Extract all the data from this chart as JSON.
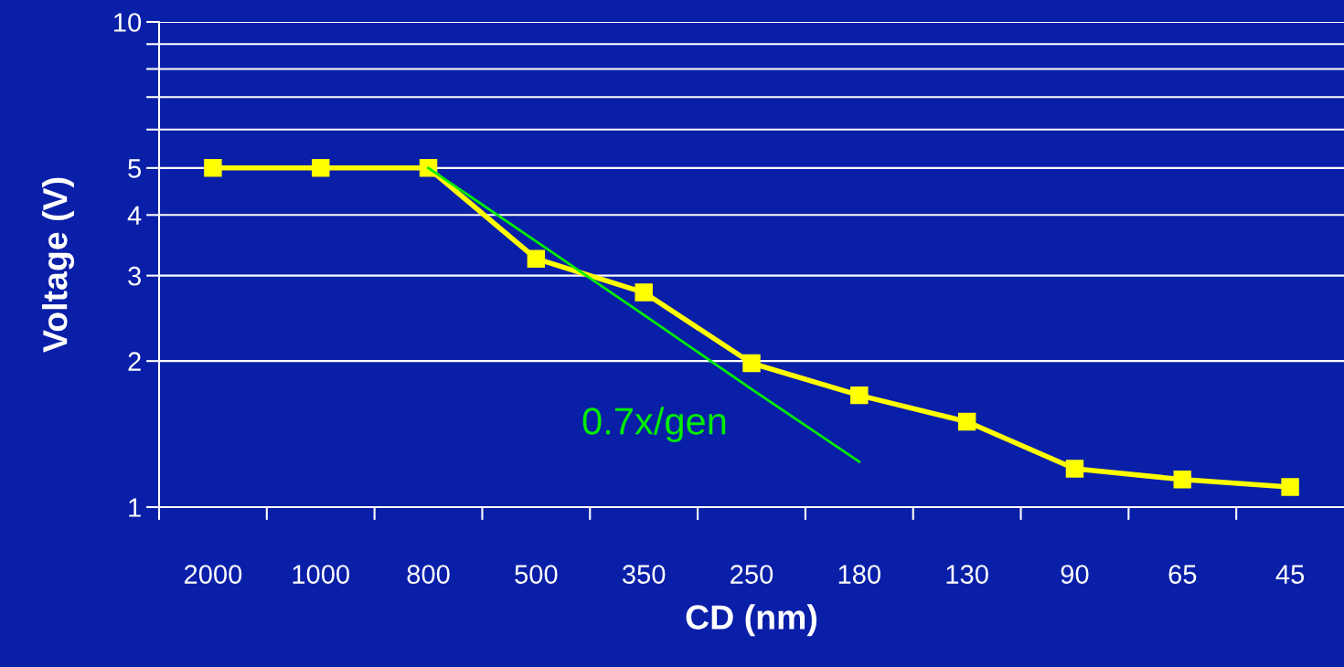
{
  "chart_data": {
    "type": "line",
    "xlabel": "CD (nm)",
    "ylabel": "Voltage (V)",
    "categories": [
      "2000",
      "1000",
      "800",
      "500",
      "350",
      "250",
      "180",
      "130",
      "90",
      "65",
      "45"
    ],
    "series": [
      {
        "color": "#ffff00",
        "values": [
          5,
          5,
          5,
          3.25,
          2.77,
          1.98,
          1.7,
          1.5,
          1.2,
          1.14,
          1.1
        ],
        "marker": "square"
      },
      {
        "type": "line",
        "color": "#00ee00",
        "values": [
          null,
          null,
          5,
          3.53,
          2.49,
          1.75,
          1.24,
          null,
          null,
          null,
          null
        ],
        "marker": "none"
      }
    ],
    "log": "y",
    "ylim": [
      1,
      10
    ],
    "yticks": [
      1,
      2,
      3,
      4,
      5,
      {
        "value": 6,
        "label": null
      },
      {
        "value": 7,
        "label": null
      },
      {
        "value": 8,
        "label": null
      },
      {
        "value": 9,
        "label": null
      },
      10
    ],
    "grid": "y",
    "annotations": [
      "0.7x/gen"
    ]
  }
}
